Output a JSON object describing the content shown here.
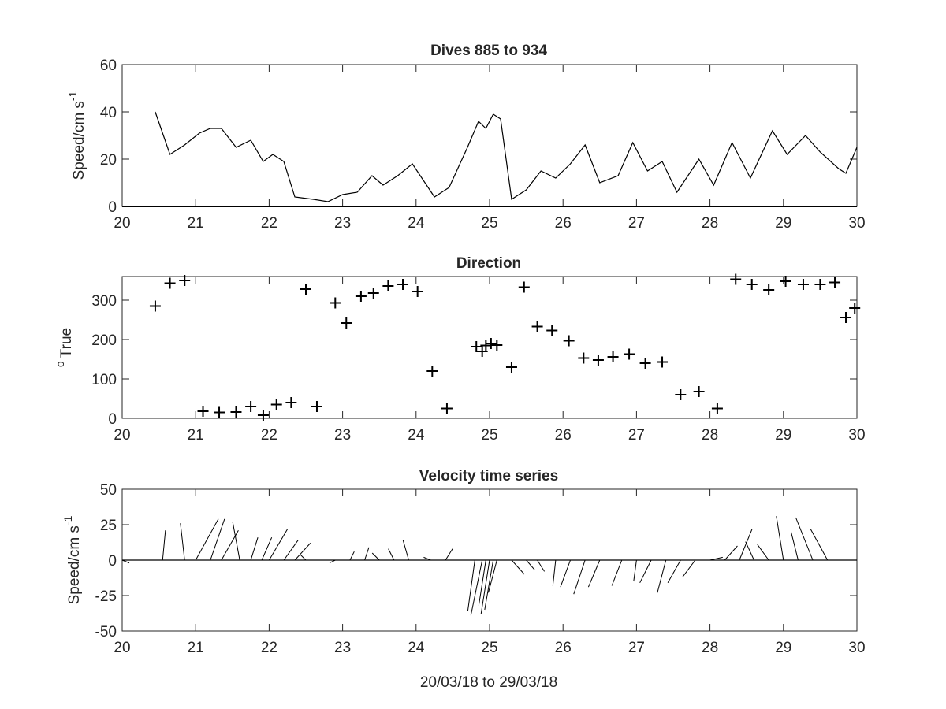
{
  "chart_data": [
    {
      "type": "line",
      "title": "Dives 885 to 934",
      "xlabel": "",
      "ylabel": "Speed/cm s",
      "ylabel_exponent": "-1",
      "xlim": [
        20,
        30
      ],
      "ylim": [
        0,
        60
      ],
      "xticks": [
        "20",
        "21",
        "22",
        "23",
        "24",
        "25",
        "26",
        "27",
        "28",
        "29",
        "30"
      ],
      "yticks": [
        "0",
        "20",
        "40",
        "60"
      ],
      "grid": false,
      "series": [
        {
          "x": [
            20.45,
            20.65,
            20.85,
            21.05,
            21.2,
            21.35,
            21.55,
            21.75,
            21.92,
            22.05,
            22.2,
            22.35,
            22.6,
            22.8,
            23.0,
            23.2,
            23.4,
            23.55,
            23.75,
            23.95,
            24.25,
            24.45,
            24.7,
            24.85,
            24.95,
            25.05,
            25.15,
            25.3,
            25.5,
            25.7,
            25.9,
            26.1,
            26.3,
            26.5,
            26.75,
            26.95,
            27.15,
            27.35,
            27.55,
            27.85,
            28.05,
            28.3,
            28.55,
            28.85,
            29.05,
            29.3,
            29.5,
            29.75,
            29.85,
            30.0
          ],
          "y": [
            40,
            22,
            26,
            31,
            33,
            33,
            25,
            28,
            19,
            22,
            19,
            4,
            3,
            2,
            5,
            6,
            13,
            9,
            13,
            18,
            4,
            8,
            25,
            36,
            33,
            39,
            37,
            3,
            7,
            15,
            12,
            18,
            26,
            10,
            13,
            27,
            15,
            19,
            6,
            20,
            9,
            27,
            12,
            32,
            22,
            30,
            23,
            16,
            14,
            25
          ]
        }
      ]
    },
    {
      "type": "scatter",
      "title": "Direction",
      "xlabel": "",
      "ylabel": "True",
      "ylabel_superscript": "o",
      "xlim": [
        20,
        30
      ],
      "ylim": [
        0,
        360
      ],
      "xticks": [
        "20",
        "21",
        "22",
        "23",
        "24",
        "25",
        "26",
        "27",
        "28",
        "29",
        "30"
      ],
      "yticks": [
        "0",
        "100",
        "200",
        "300"
      ],
      "marker": "+",
      "grid": false,
      "series": [
        {
          "x": [
            20.45,
            20.65,
            20.85,
            21.1,
            21.32,
            21.55,
            21.75,
            21.92,
            22.1,
            22.3,
            22.5,
            22.65,
            22.9,
            23.05,
            23.25,
            23.42,
            23.62,
            23.82,
            24.02,
            24.22,
            24.42,
            24.82,
            24.9,
            24.95,
            25.02,
            25.1,
            25.3,
            25.47,
            25.65,
            25.85,
            26.08,
            26.28,
            26.48,
            26.68,
            26.9,
            27.12,
            27.35,
            27.6,
            27.85,
            28.1,
            28.35,
            28.57,
            28.8,
            29.03,
            29.27,
            29.5,
            29.7,
            29.85,
            29.97
          ],
          "y": [
            285,
            343,
            350,
            18,
            15,
            16,
            30,
            8,
            35,
            40,
            328,
            30,
            293,
            242,
            310,
            318,
            336,
            340,
            322,
            120,
            25,
            182,
            170,
            185,
            190,
            186,
            130,
            333,
            233,
            223,
            197,
            153,
            148,
            156,
            163,
            140,
            143,
            60,
            68,
            25,
            353,
            340,
            326,
            348,
            340,
            340,
            345,
            256,
            280
          ]
        }
      ]
    },
    {
      "type": "line",
      "subtype": "feather",
      "title": "Velocity time series",
      "xlabel": "20/03/18 to 29/03/18",
      "ylabel": "Speed/cm s",
      "ylabel_exponent": "-1",
      "xlim": [
        20,
        30
      ],
      "ylim": [
        -50,
        50
      ],
      "xticks": [
        "20",
        "21",
        "22",
        "23",
        "24",
        "25",
        "26",
        "27",
        "28",
        "29",
        "30"
      ],
      "yticks": [
        "-50",
        "-25",
        "0",
        "25",
        "50"
      ],
      "grid": false,
      "series": [
        {
          "x": [
            20.0,
            20.55,
            20.85,
            21.0,
            21.2,
            21.35,
            21.6,
            21.75,
            21.9,
            22.0,
            22.2,
            22.35,
            22.5,
            22.9,
            23.1,
            23.3,
            23.5,
            23.7,
            23.9,
            24.2,
            24.4,
            24.8,
            24.9,
            24.95,
            25.0,
            25.05,
            25.1,
            25.3,
            25.5,
            25.65,
            25.9,
            26.1,
            26.3,
            26.5,
            26.8,
            27.0,
            27.2,
            27.4,
            27.6,
            27.8,
            28.0,
            28.2,
            28.4,
            28.6,
            28.8,
            29.0,
            29.2,
            29.4,
            29.6,
            29.75
          ],
          "u": [
            5,
            2,
            -3,
            16,
            10,
            12,
            -5,
            5,
            7,
            13,
            10,
            11,
            -4,
            -4,
            3,
            3,
            -5,
            -4,
            -4,
            -5,
            5,
            -5,
            -8,
            -5,
            -6,
            -6,
            -6,
            9,
            6,
            5,
            -2,
            -7,
            -8,
            -8,
            -7,
            -2,
            -8,
            -6,
            -9,
            -9,
            9,
            9,
            9,
            -6,
            -8,
            -5,
            -5,
            -12,
            -12,
            -14
          ],
          "v": [
            -2,
            21,
            26,
            29,
            29,
            21,
            27,
            16,
            16,
            22,
            14,
            12,
            4,
            -2,
            6,
            9,
            5,
            8,
            14,
            2,
            8,
            -36,
            -39,
            -32,
            -38,
            -35,
            -23,
            -10,
            -7,
            -8,
            -18,
            -19,
            -24,
            -19,
            -18,
            -15,
            -16,
            -23,
            -16,
            -12,
            2,
            10,
            22,
            13,
            11,
            31,
            20,
            30,
            22,
            0
          ]
        }
      ]
    }
  ]
}
